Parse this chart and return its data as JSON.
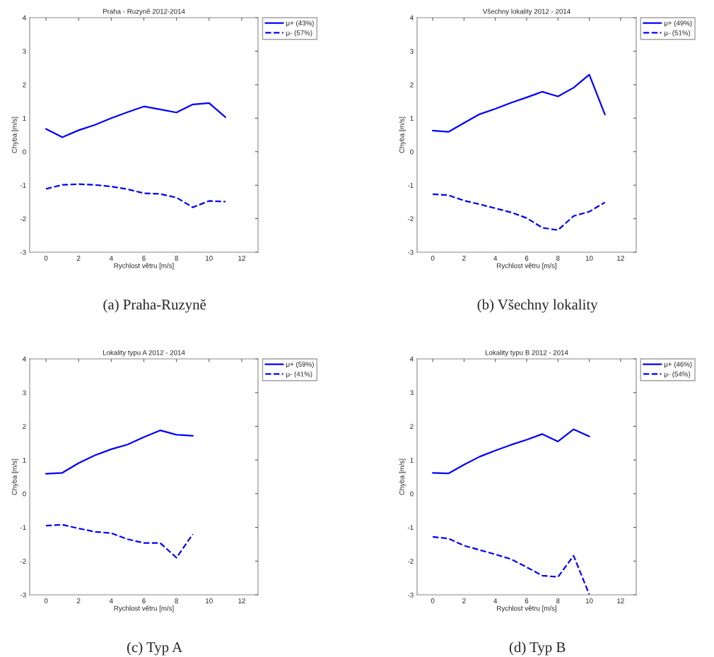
{
  "chart_data": [
    {
      "type": "line",
      "title": "Praha - Ruzyně 2012-2014",
      "xlabel": "Rychlost větru [m/s]",
      "ylabel": "Chyba [m/s]",
      "x": [
        0,
        1,
        2,
        3,
        4,
        5,
        6,
        7,
        8,
        9,
        10,
        11
      ],
      "xlim": [
        -1,
        13
      ],
      "ylim": [
        -3,
        4
      ],
      "xticks": [
        0,
        2,
        4,
        6,
        8,
        10,
        12
      ],
      "yticks": [
        -3,
        -2,
        -1,
        0,
        1,
        2,
        3,
        4
      ],
      "legend": "top right",
      "annotations": [
        "(a) Praha-Ruzyně"
      ],
      "series": [
        {
          "name": "μ+ (43%)",
          "color": "#0000ff",
          "line_style": "solid",
          "values": [
            0.68,
            0.43,
            0.64,
            0.8,
            1.0,
            1.18,
            1.35,
            1.26,
            1.17,
            1.41,
            1.45,
            1.03
          ]
        },
        {
          "name": "μ- (57%)",
          "color": "#0000ff",
          "line_style": "dashed",
          "values": [
            -1.11,
            -0.99,
            -0.97,
            -0.99,
            -1.04,
            -1.12,
            -1.24,
            -1.26,
            -1.37,
            -1.66,
            -1.47,
            -1.49
          ]
        }
      ]
    },
    {
      "type": "line",
      "title": "Všechny lokality 2012 - 2014",
      "xlabel": "Rychlost větru [m/s]",
      "ylabel": "Chyba [m/s]",
      "x": [
        0,
        1,
        2,
        3,
        4,
        5,
        6,
        7,
        8,
        9,
        10,
        11
      ],
      "xlim": [
        -1,
        13
      ],
      "ylim": [
        -3,
        4
      ],
      "xticks": [
        0,
        2,
        4,
        6,
        8,
        10,
        12
      ],
      "yticks": [
        -3,
        -2,
        -1,
        0,
        1,
        2,
        3,
        4
      ],
      "legend": "top right",
      "annotations": [
        "(b) Všechny lokality"
      ],
      "series": [
        {
          "name": "μ+ (49%)",
          "color": "#0000ff",
          "line_style": "solid",
          "values": [
            0.63,
            0.59,
            0.86,
            1.12,
            1.28,
            1.46,
            1.62,
            1.79,
            1.65,
            1.91,
            2.3,
            1.11
          ]
        },
        {
          "name": "μ- (51%)",
          "color": "#0000ff",
          "line_style": "dashed",
          "values": [
            -1.27,
            -1.3,
            -1.46,
            -1.57,
            -1.69,
            -1.81,
            -1.98,
            -2.27,
            -2.34,
            -1.92,
            -1.79,
            -1.51
          ]
        }
      ]
    },
    {
      "type": "line",
      "title": "Lokality typu A 2012 - 2014",
      "xlabel": "Rychlost větru [m/s]",
      "ylabel": "Chyba [m/s]",
      "x": [
        0,
        1,
        2,
        3,
        4,
        5,
        6,
        7,
        8,
        9
      ],
      "xlim": [
        -1,
        13
      ],
      "ylim": [
        -3,
        4
      ],
      "xticks": [
        0,
        2,
        4,
        6,
        8,
        10,
        12
      ],
      "yticks": [
        -3,
        -2,
        -1,
        0,
        1,
        2,
        3,
        4
      ],
      "legend": "top right",
      "annotations": [
        "(c) Typ A"
      ],
      "series": [
        {
          "name": "μ+ (59%)",
          "color": "#0000ff",
          "line_style": "solid",
          "values": [
            0.59,
            0.62,
            0.91,
            1.14,
            1.32,
            1.46,
            1.68,
            1.88,
            1.75,
            1.72
          ]
        },
        {
          "name": "μ- (41%)",
          "color": "#0000ff",
          "line_style": "dashed",
          "values": [
            -0.95,
            -0.92,
            -1.03,
            -1.13,
            -1.17,
            -1.35,
            -1.46,
            -1.46,
            -1.9,
            -1.2
          ]
        }
      ]
    },
    {
      "type": "line",
      "title": "Lokality typu B 2012 - 2014",
      "xlabel": "Rychlost větru [m/s]",
      "ylabel": "Chyba [m/s]",
      "x": [
        0,
        1,
        2,
        3,
        4,
        5,
        6,
        7,
        8,
        9,
        10
      ],
      "xlim": [
        -1,
        13
      ],
      "ylim": [
        -3,
        4
      ],
      "xticks": [
        0,
        2,
        4,
        6,
        8,
        10,
        12
      ],
      "yticks": [
        -3,
        -2,
        -1,
        0,
        1,
        2,
        3,
        4
      ],
      "legend": "top right",
      "annotations": [
        "(d) Typ B"
      ],
      "series": [
        {
          "name": "μ+ (46%)",
          "color": "#0000ff",
          "line_style": "solid",
          "values": [
            0.62,
            0.6,
            0.86,
            1.1,
            1.28,
            1.45,
            1.6,
            1.77,
            1.55,
            1.91,
            1.7
          ]
        },
        {
          "name": "μ- (54%)",
          "color": "#0000ff",
          "line_style": "dashed",
          "values": [
            -1.28,
            -1.33,
            -1.54,
            -1.67,
            -1.8,
            -1.94,
            -2.18,
            -2.43,
            -2.47,
            -1.84,
            -2.99
          ]
        }
      ]
    }
  ]
}
